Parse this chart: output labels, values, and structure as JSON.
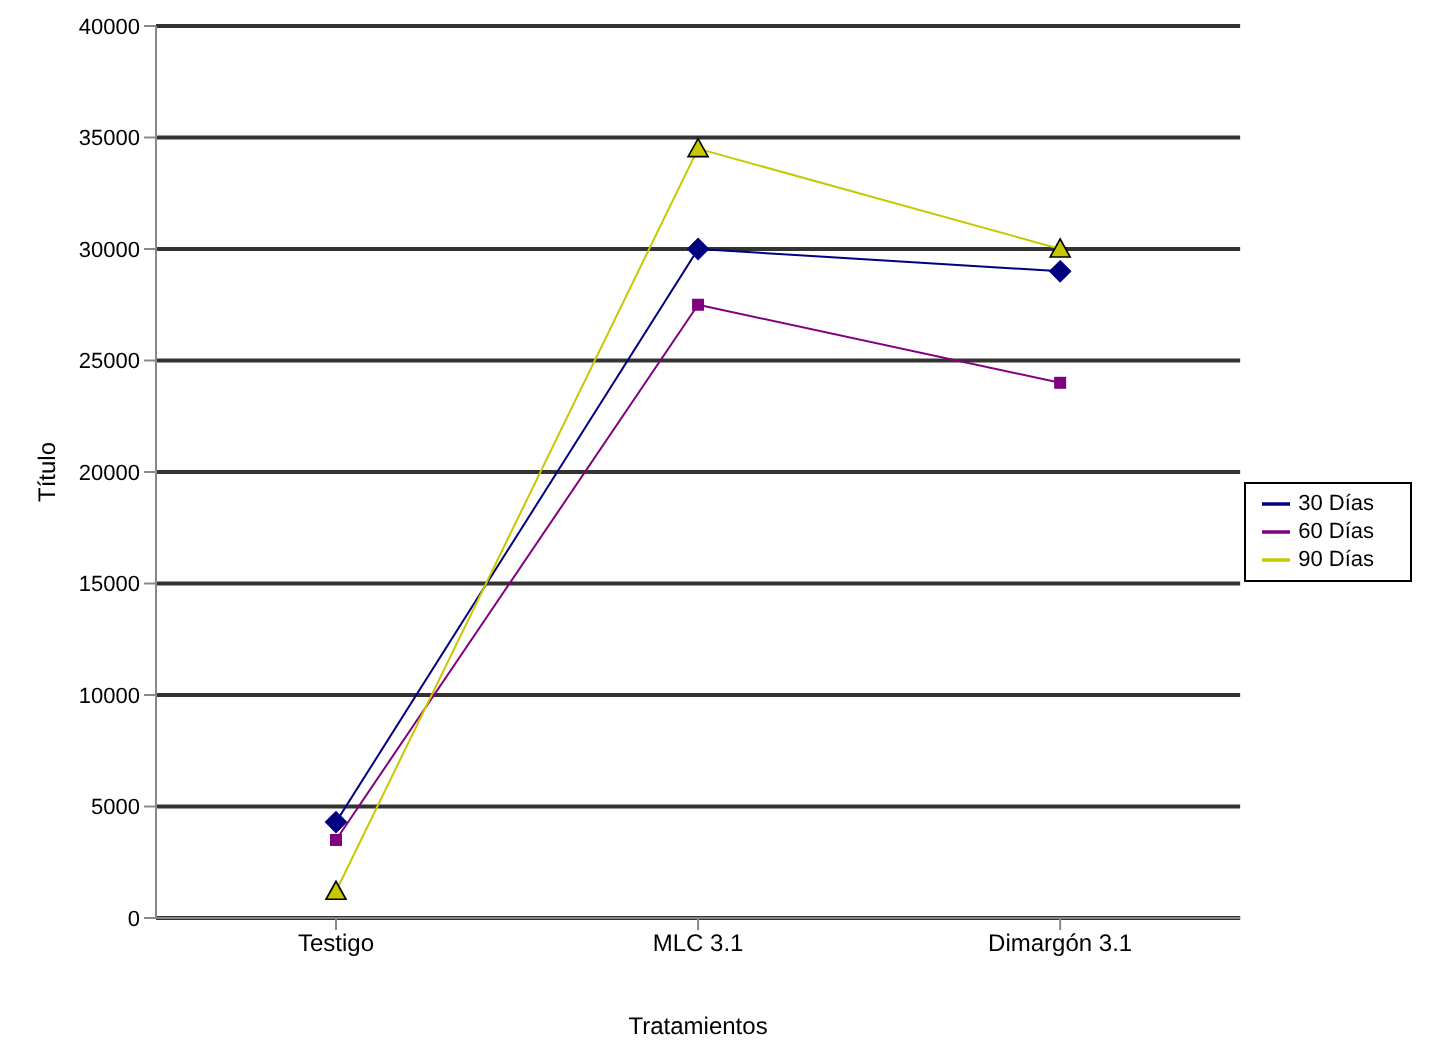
{
  "chart_data": {
    "type": "line",
    "xlabel": "Tratamientos",
    "ylabel": "Título",
    "categories": [
      "Testigo",
      "MLC 3.1",
      "Dimargón 3.1"
    ],
    "series": [
      {
        "name": "30 Días",
        "color": "#000080",
        "marker": "diamond",
        "values": [
          4300,
          30000,
          29000
        ]
      },
      {
        "name": "60 Días",
        "color": "#800080",
        "marker": "square",
        "values": [
          3500,
          27500,
          24000
        ]
      },
      {
        "name": "90 Días",
        "color": "#c8c800",
        "marker": "triangle",
        "values": [
          1200,
          34500,
          30000
        ]
      }
    ],
    "ylim": [
      0,
      40000
    ],
    "yticks": [
      0,
      5000,
      10000,
      15000,
      20000,
      25000,
      30000,
      35000,
      40000
    ],
    "grid": "y",
    "legend": "right"
  }
}
